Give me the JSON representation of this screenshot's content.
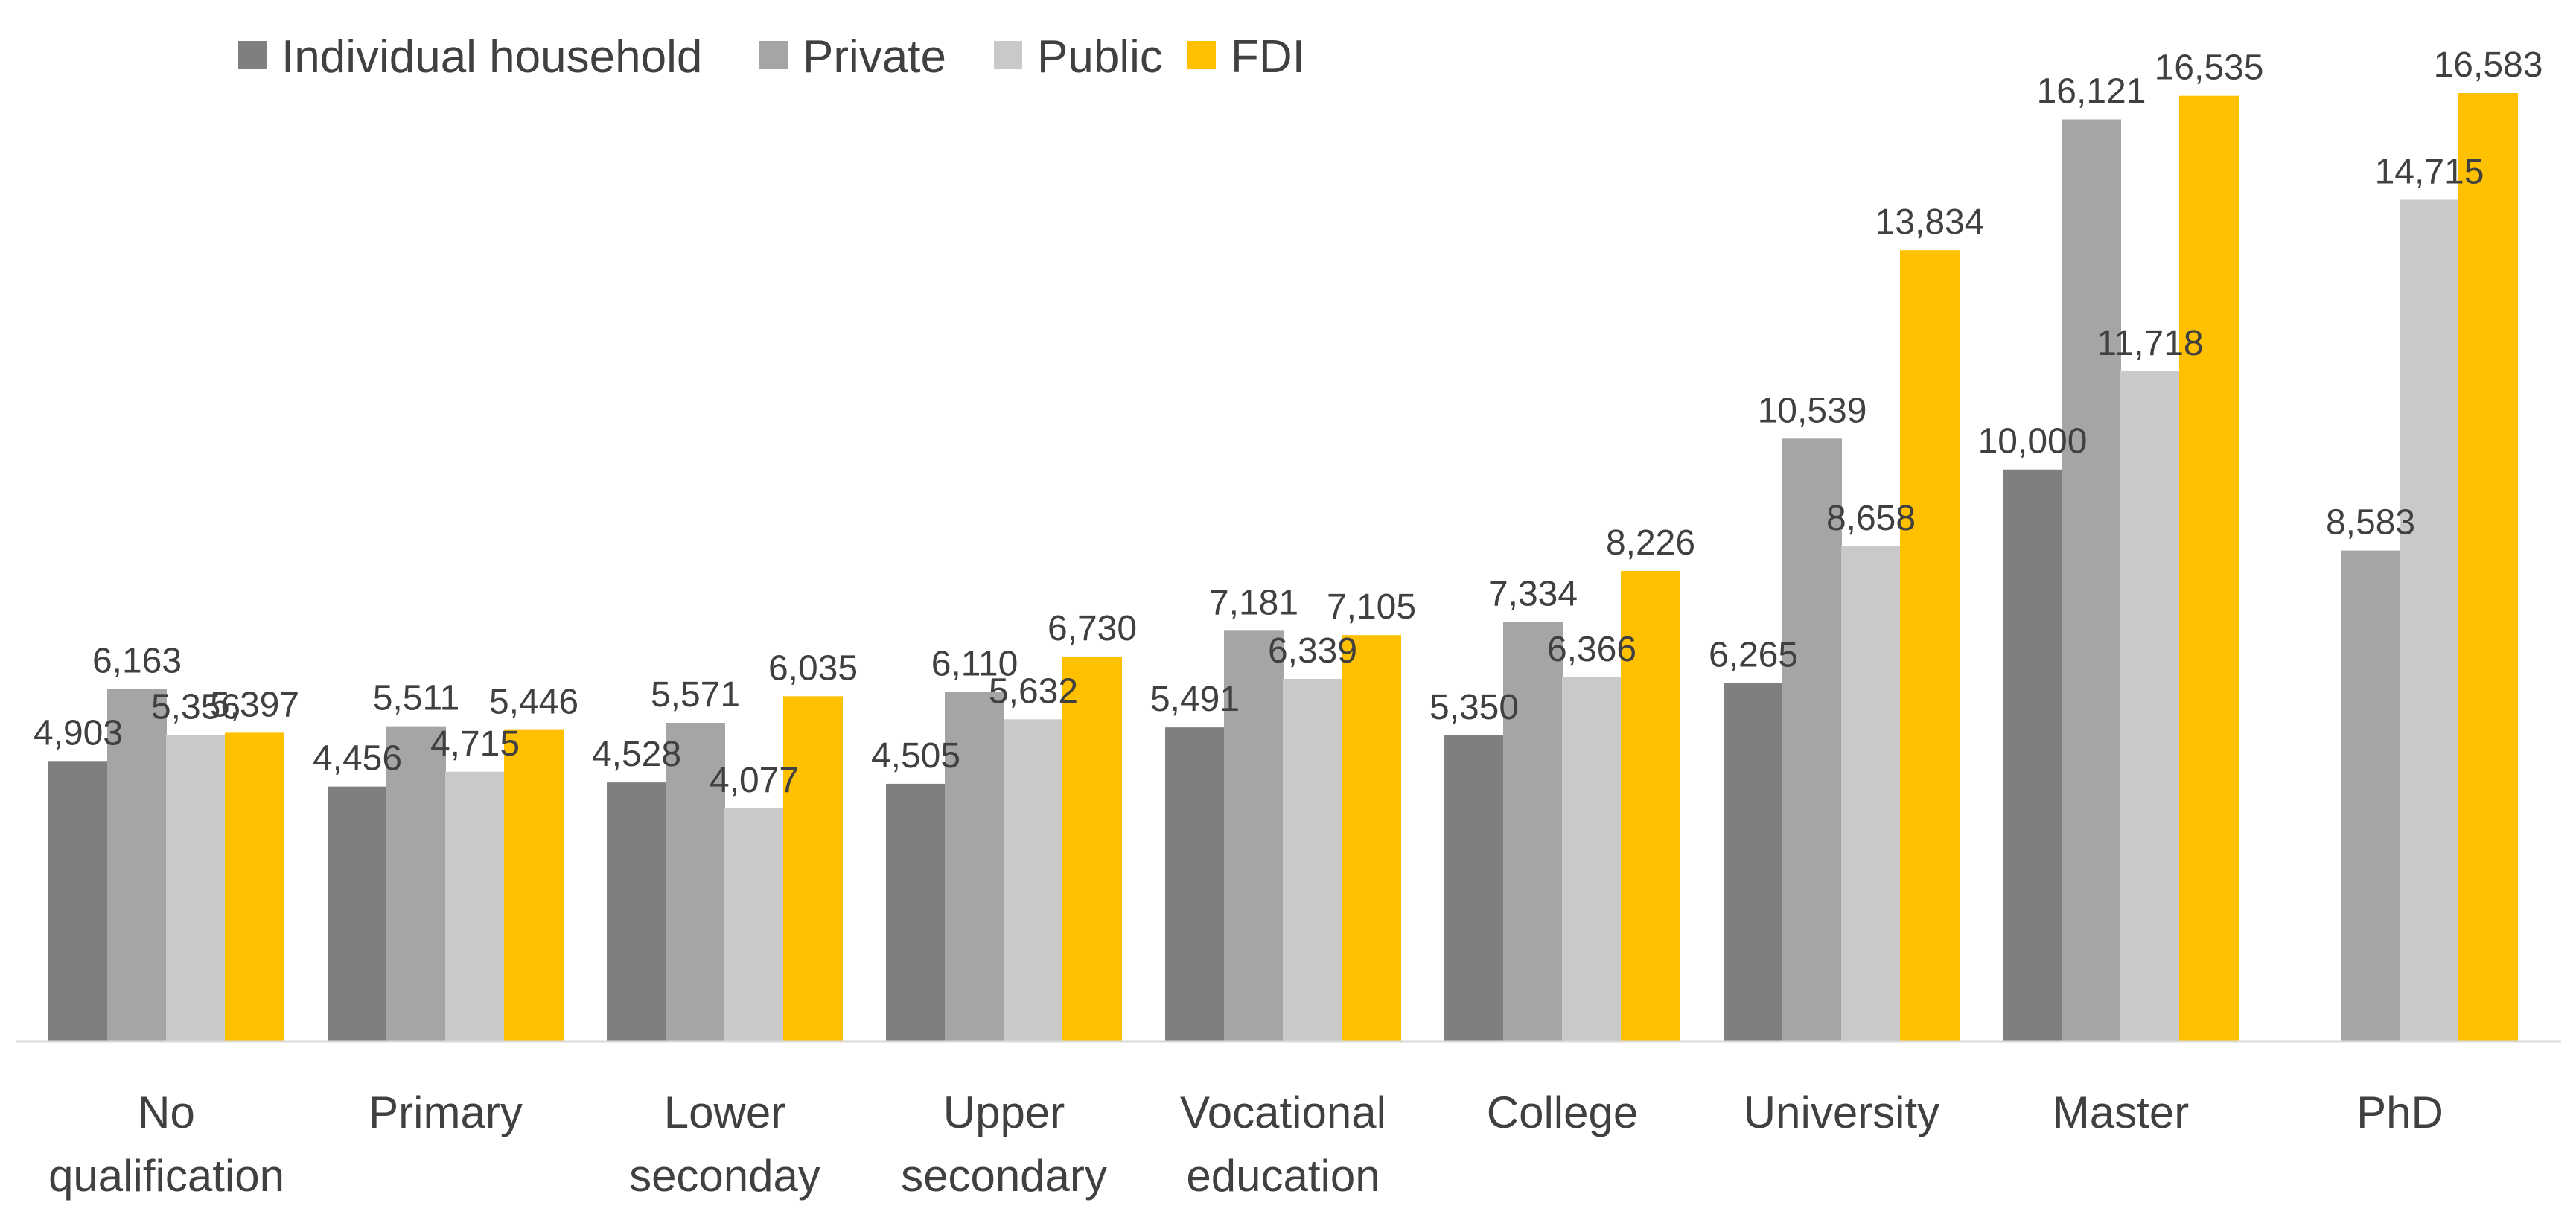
{
  "chart_data": {
    "type": "bar",
    "title": "",
    "xlabel": "",
    "ylabel": "",
    "ylim": [
      0,
      17500
    ],
    "grid": false,
    "legend_position": "top-left",
    "categories": [
      [
        "No",
        "qualification"
      ],
      [
        "Primary"
      ],
      [
        "Lower",
        "seconday"
      ],
      [
        "Upper",
        "secondary"
      ],
      [
        "Vocational",
        "education"
      ],
      [
        "College"
      ],
      [
        "University"
      ],
      [
        "Master"
      ],
      [
        "PhD"
      ]
    ],
    "series": [
      {
        "name": "Individual household",
        "color": "#7f7f7f",
        "values": [
          4903,
          4456,
          4528,
          4505,
          5491,
          5350,
          6265,
          10000,
          null
        ],
        "labels": [
          "4,903",
          "4,456",
          "4,528",
          "4,505",
          "5,491",
          "5,350",
          "6,265",
          "10,000",
          ""
        ]
      },
      {
        "name": "Private",
        "color": "#a5a5a5",
        "values": [
          6163,
          5511,
          5571,
          6110,
          7181,
          7334,
          10539,
          16121,
          8583
        ],
        "labels": [
          "6,163",
          "5,511",
          "5,571",
          "6,110",
          "7,181",
          "7,334",
          "10,539",
          "16,121",
          "8,583"
        ]
      },
      {
        "name": "Public",
        "color": "#c9c9c9",
        "values": [
          5356,
          4715,
          4077,
          5632,
          6339,
          6366,
          8658,
          11718,
          14715
        ],
        "labels": [
          "5,356",
          "4,715",
          "4,077",
          "5,632",
          "6,339",
          "6,366",
          "8,658",
          "11,718",
          "14,715"
        ]
      },
      {
        "name": "FDI",
        "color": "#ffc000",
        "values": [
          5397,
          5446,
          6035,
          6730,
          7105,
          8226,
          13834,
          16535,
          16583
        ],
        "labels": [
          "5,397",
          "5,446",
          "6,035",
          "6,730",
          "7,105",
          "8,226",
          "13,834",
          "16,535",
          "16,583"
        ]
      }
    ]
  }
}
